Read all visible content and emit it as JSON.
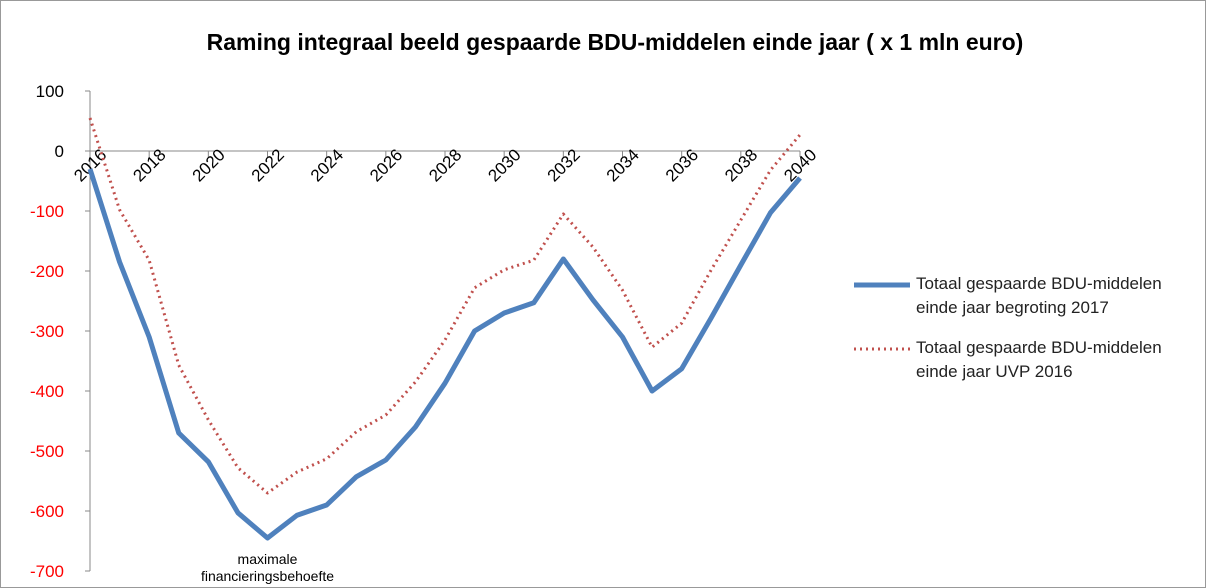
{
  "chart_data": {
    "type": "line",
    "title": "Raming integraal beeld gespaarde BDU-middelen einde jaar ( x 1 mln euro)",
    "x": [
      2016,
      2017,
      2018,
      2019,
      2020,
      2021,
      2022,
      2023,
      2024,
      2025,
      2026,
      2027,
      2028,
      2029,
      2030,
      2031,
      2032,
      2033,
      2034,
      2035,
      2036,
      2037,
      2038,
      2039,
      2040
    ],
    "xlim": [
      2016,
      2040
    ],
    "xticks": [
      2016,
      2018,
      2020,
      2022,
      2024,
      2026,
      2028,
      2030,
      2032,
      2034,
      2036,
      2038,
      2040
    ],
    "ylim": [
      -700,
      100
    ],
    "yticks": [
      -700,
      -600,
      -500,
      -400,
      -300,
      -200,
      -100,
      0,
      100
    ],
    "negative_tick_color": "#ff0000",
    "grid": false,
    "legend": "right",
    "series": [
      {
        "name": "Totaal gespaarde BDU-middelen einde jaar begroting 2017",
        "color": "#4f81bd",
        "style": "solid",
        "values": [
          -30,
          -185,
          -310,
          -470,
          -518,
          -603,
          -645,
          -607,
          -590,
          -543,
          -515,
          -460,
          -387,
          -300,
          -270,
          -253,
          -180,
          -248,
          -310,
          -400,
          -363,
          -278,
          -190,
          -103,
          -45
        ]
      },
      {
        "name": "Totaal gespaarde BDU-middelen einde jaar UVP 2016",
        "color": "#c0504d",
        "style": "dotted",
        "values": [
          55,
          -98,
          -182,
          -357,
          -448,
          -528,
          -570,
          -535,
          -513,
          -468,
          -440,
          -385,
          -315,
          -228,
          -198,
          -182,
          -105,
          -160,
          -232,
          -327,
          -287,
          -198,
          -115,
          -32,
          27
        ]
      }
    ],
    "annotation": {
      "lines": [
        "maximale",
        "financieringsbehoefte"
      ],
      "x": 2022,
      "y": -645
    }
  }
}
